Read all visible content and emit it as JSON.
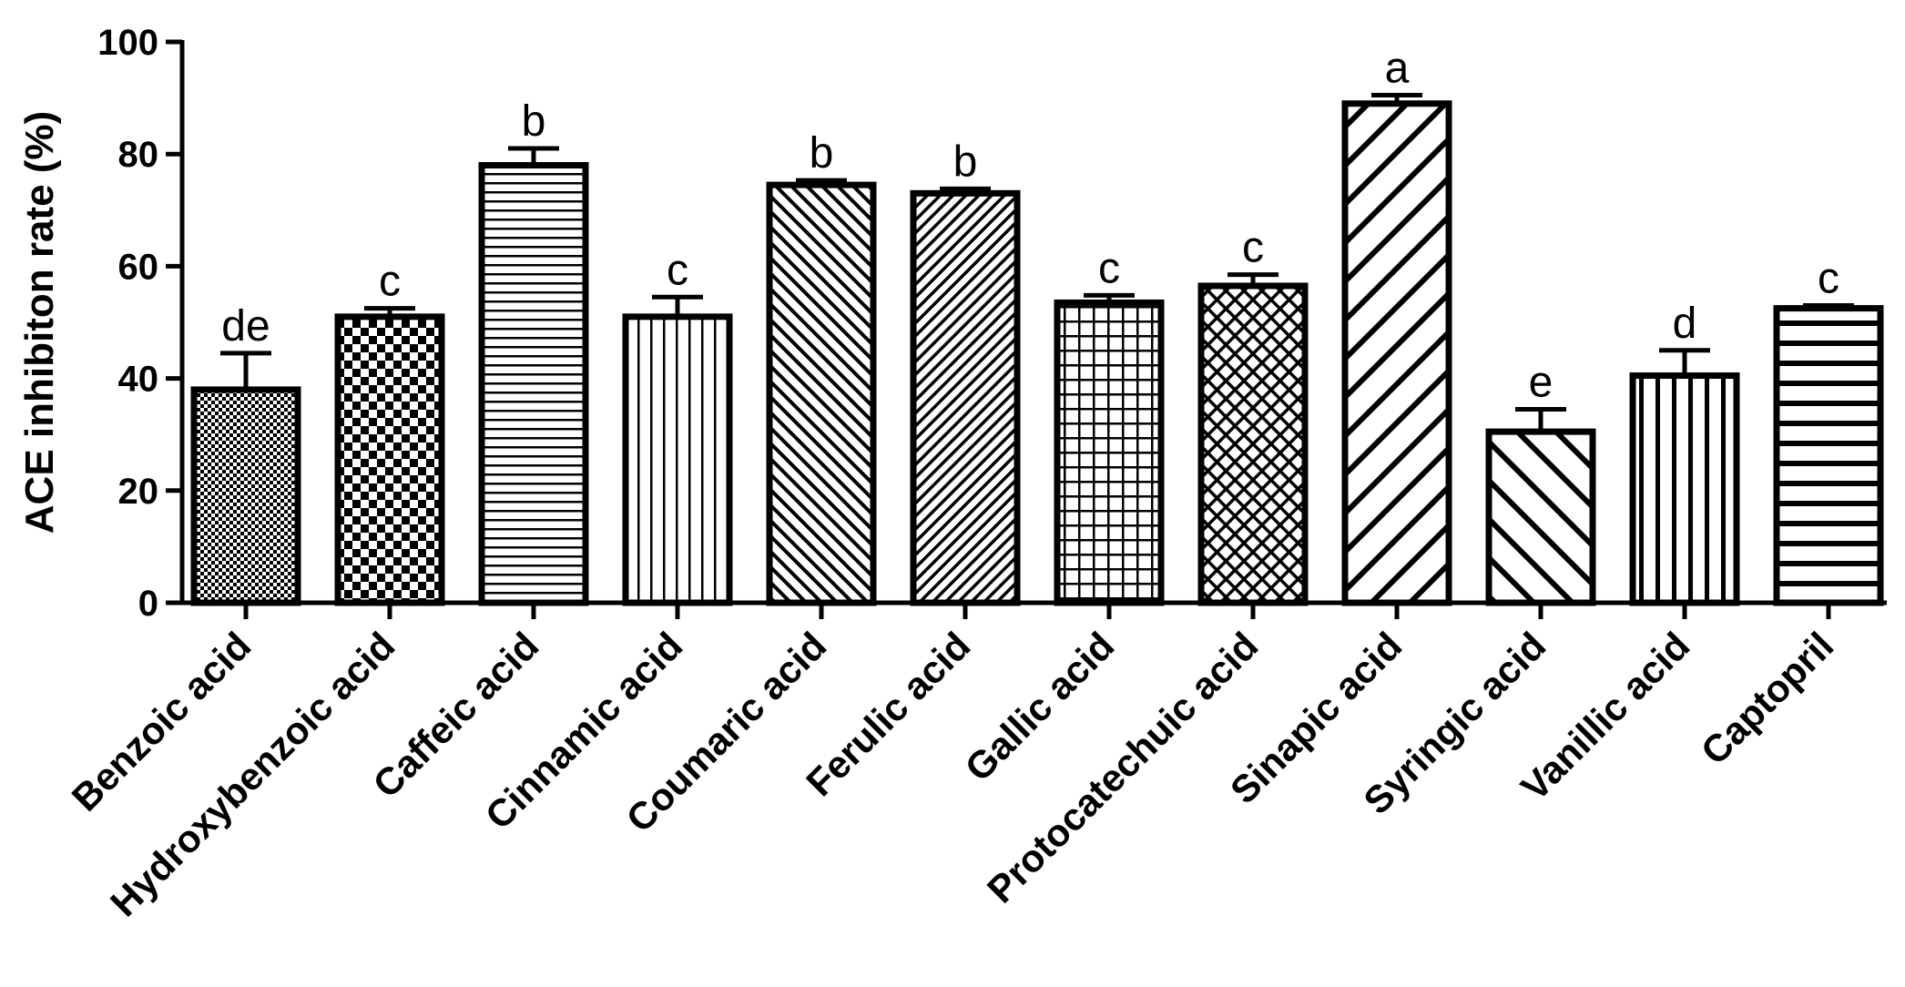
{
  "chart_data": {
    "type": "bar",
    "title": "",
    "xlabel": "",
    "ylabel": "ACE inhibiton rate (%)",
    "ylim": [
      0,
      100
    ],
    "yticks": [
      0,
      20,
      40,
      60,
      80,
      100
    ],
    "grid": false,
    "legend": "none",
    "categories": [
      "Benzoic acid",
      "Hydroxybenzoic acid",
      "Caffeic acid",
      "Cinnamic acid",
      "Coumaric acid",
      "Ferulic acid",
      "Gallic acid",
      "Protocatechuic acid",
      "Sinapic acid",
      "Syringic acid",
      "Vanillic acid",
      "Captopril"
    ],
    "values": [
      38,
      51,
      78,
      51,
      74.5,
      73,
      53.5,
      56.5,
      89,
      30.5,
      40.5,
      52.5
    ],
    "errors": [
      6.5,
      1.5,
      3,
      3.5,
      0.8,
      0.8,
      1.3,
      2,
      1.5,
      4,
      4.5,
      0.5
    ],
    "significance": [
      "de",
      "c",
      "b",
      "c",
      "b",
      "b",
      "c",
      "c",
      "a",
      "e",
      "d",
      "c"
    ],
    "fill_patterns": [
      "fine-dots",
      "checkerboard",
      "horizontal-lines",
      "vertical-lines",
      "diagonal-right",
      "diagonal-left-dense",
      "grid",
      "diamond-crosshatch",
      "wide-diagonal-left",
      "wide-diagonal-right",
      "wide-vertical-lines",
      "wide-horizontal-lines"
    ],
    "bar_color": "#000000"
  }
}
